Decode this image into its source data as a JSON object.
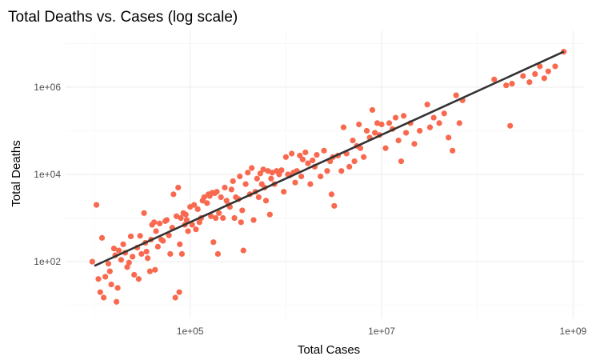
{
  "chart_data": {
    "type": "scatter",
    "title": "Total Deaths vs. Cases (log scale)",
    "xlabel": "Total Cases",
    "ylabel": "Total Deaths",
    "x_scale": "log10",
    "y_scale": "log10",
    "xlim": [
      5000,
      1300000000
    ],
    "ylim": [
      5,
      20000000
    ],
    "x_ticks": [
      {
        "value": 100000,
        "label": "1e+05"
      },
      {
        "value": 10000000,
        "label": "1e+07"
      },
      {
        "value": 1000000000,
        "label": "1e+09"
      }
    ],
    "y_ticks": [
      {
        "value": 100,
        "label": "1e+02"
      },
      {
        "value": 10000,
        "label": "1e+04"
      },
      {
        "value": 1000000,
        "label": "1e+06"
      }
    ],
    "grid": true,
    "legend": "none",
    "colors": {
      "points": "#f8694f",
      "trend_line": "#333333",
      "grid": "#ebebeb",
      "background": "#ffffff"
    },
    "trend_line": {
      "type": "linear-fit-log-log",
      "points": [
        {
          "x": 10000,
          "y": 80
        },
        {
          "x": 800000000,
          "y": 6500000
        }
      ]
    },
    "points": [
      {
        "x": 9500,
        "y": 100
      },
      {
        "x": 10500,
        "y": 2000
      },
      {
        "x": 11000,
        "y": 40
      },
      {
        "x": 11500,
        "y": 20
      },
      {
        "x": 12000,
        "y": 350
      },
      {
        "x": 12500,
        "y": 15
      },
      {
        "x": 13000,
        "y": 45
      },
      {
        "x": 14000,
        "y": 90
      },
      {
        "x": 14500,
        "y": 60
      },
      {
        "x": 15000,
        "y": 30
      },
      {
        "x": 16000,
        "y": 200
      },
      {
        "x": 16500,
        "y": 140
      },
      {
        "x": 17000,
        "y": 12
      },
      {
        "x": 17500,
        "y": 25
      },
      {
        "x": 18000,
        "y": 180
      },
      {
        "x": 19000,
        "y": 110
      },
      {
        "x": 20000,
        "y": 250
      },
      {
        "x": 21000,
        "y": 160
      },
      {
        "x": 22000,
        "y": 75
      },
      {
        "x": 23000,
        "y": 95
      },
      {
        "x": 24000,
        "y": 380
      },
      {
        "x": 25000,
        "y": 130
      },
      {
        "x": 26000,
        "y": 50
      },
      {
        "x": 28000,
        "y": 210
      },
      {
        "x": 29000,
        "y": 40
      },
      {
        "x": 30000,
        "y": 390
      },
      {
        "x": 31000,
        "y": 150
      },
      {
        "x": 33000,
        "y": 1300
      },
      {
        "x": 34000,
        "y": 270
      },
      {
        "x": 35000,
        "y": 170
      },
      {
        "x": 36000,
        "y": 120
      },
      {
        "x": 38000,
        "y": 60
      },
      {
        "x": 39000,
        "y": 320
      },
      {
        "x": 40000,
        "y": 700
      },
      {
        "x": 42000,
        "y": 800
      },
      {
        "x": 43000,
        "y": 65
      },
      {
        "x": 44000,
        "y": 500
      },
      {
        "x": 46000,
        "y": 220
      },
      {
        "x": 48000,
        "y": 750
      },
      {
        "x": 50000,
        "y": 320
      },
      {
        "x": 52000,
        "y": 300
      },
      {
        "x": 55000,
        "y": 850
      },
      {
        "x": 57000,
        "y": 900
      },
      {
        "x": 60000,
        "y": 400
      },
      {
        "x": 62000,
        "y": 150
      },
      {
        "x": 65000,
        "y": 600
      },
      {
        "x": 67000,
        "y": 3500
      },
      {
        "x": 70000,
        "y": 15
      },
      {
        "x": 72000,
        "y": 1100
      },
      {
        "x": 75000,
        "y": 5000
      },
      {
        "x": 77000,
        "y": 20
      },
      {
        "x": 78000,
        "y": 250
      },
      {
        "x": 80000,
        "y": 1000
      },
      {
        "x": 82000,
        "y": 150
      },
      {
        "x": 85000,
        "y": 1300
      },
      {
        "x": 88000,
        "y": 700
      },
      {
        "x": 90000,
        "y": 1200
      },
      {
        "x": 92000,
        "y": 900
      },
      {
        "x": 95000,
        "y": 500
      },
      {
        "x": 100000,
        "y": 1800
      },
      {
        "x": 105000,
        "y": 700
      },
      {
        "x": 110000,
        "y": 2000
      },
      {
        "x": 115000,
        "y": 550
      },
      {
        "x": 120000,
        "y": 1600
      },
      {
        "x": 125000,
        "y": 800
      },
      {
        "x": 130000,
        "y": 1000
      },
      {
        "x": 135000,
        "y": 2500
      },
      {
        "x": 140000,
        "y": 3000
      },
      {
        "x": 150000,
        "y": 2200
      },
      {
        "x": 155000,
        "y": 3500
      },
      {
        "x": 160000,
        "y": 3200
      },
      {
        "x": 165000,
        "y": 1100
      },
      {
        "x": 170000,
        "y": 3800
      },
      {
        "x": 175000,
        "y": 280
      },
      {
        "x": 180000,
        "y": 3700
      },
      {
        "x": 185000,
        "y": 1000
      },
      {
        "x": 190000,
        "y": 4000
      },
      {
        "x": 195000,
        "y": 150
      },
      {
        "x": 200000,
        "y": 1300
      },
      {
        "x": 210000,
        "y": 3000
      },
      {
        "x": 220000,
        "y": 1000
      },
      {
        "x": 230000,
        "y": 5000
      },
      {
        "x": 240000,
        "y": 2500
      },
      {
        "x": 250000,
        "y": 2000
      },
      {
        "x": 260000,
        "y": 1800
      },
      {
        "x": 270000,
        "y": 4500
      },
      {
        "x": 280000,
        "y": 7000
      },
      {
        "x": 290000,
        "y": 1000
      },
      {
        "x": 300000,
        "y": 3000
      },
      {
        "x": 320000,
        "y": 2700
      },
      {
        "x": 330000,
        "y": 9000
      },
      {
        "x": 340000,
        "y": 800
      },
      {
        "x": 350000,
        "y": 1500
      },
      {
        "x": 360000,
        "y": 180
      },
      {
        "x": 380000,
        "y": 6000
      },
      {
        "x": 400000,
        "y": 11000
      },
      {
        "x": 420000,
        "y": 3500
      },
      {
        "x": 440000,
        "y": 14000
      },
      {
        "x": 460000,
        "y": 900
      },
      {
        "x": 480000,
        "y": 4000
      },
      {
        "x": 500000,
        "y": 8000
      },
      {
        "x": 520000,
        "y": 3000
      },
      {
        "x": 540000,
        "y": 10500
      },
      {
        "x": 560000,
        "y": 6000
      },
      {
        "x": 580000,
        "y": 13000
      },
      {
        "x": 600000,
        "y": 5000
      },
      {
        "x": 620000,
        "y": 2500
      },
      {
        "x": 650000,
        "y": 12000
      },
      {
        "x": 680000,
        "y": 1200
      },
      {
        "x": 700000,
        "y": 8000
      },
      {
        "x": 720000,
        "y": 11000
      },
      {
        "x": 760000,
        "y": 6000
      },
      {
        "x": 800000,
        "y": 12000
      },
      {
        "x": 850000,
        "y": 10000
      },
      {
        "x": 900000,
        "y": 12500
      },
      {
        "x": 950000,
        "y": 4000
      },
      {
        "x": 1000000,
        "y": 25000
      },
      {
        "x": 1050000,
        "y": 10000
      },
      {
        "x": 1100000,
        "y": 9500
      },
      {
        "x": 1150000,
        "y": 30000
      },
      {
        "x": 1200000,
        "y": 11000
      },
      {
        "x": 1250000,
        "y": 6500
      },
      {
        "x": 1300000,
        "y": 12000
      },
      {
        "x": 1400000,
        "y": 27000
      },
      {
        "x": 1450000,
        "y": 9000
      },
      {
        "x": 1500000,
        "y": 22000
      },
      {
        "x": 1600000,
        "y": 32000
      },
      {
        "x": 1700000,
        "y": 18000
      },
      {
        "x": 1800000,
        "y": 6000
      },
      {
        "x": 1900000,
        "y": 21000
      },
      {
        "x": 2000000,
        "y": 15000
      },
      {
        "x": 2100000,
        "y": 28000
      },
      {
        "x": 2300000,
        "y": 9000
      },
      {
        "x": 2500000,
        "y": 35000
      },
      {
        "x": 2700000,
        "y": 12000
      },
      {
        "x": 2900000,
        "y": 20000
      },
      {
        "x": 3000000,
        "y": 3500
      },
      {
        "x": 3100000,
        "y": 25000
      },
      {
        "x": 3200000,
        "y": 1900
      },
      {
        "x": 3500000,
        "y": 27000
      },
      {
        "x": 3800000,
        "y": 12000
      },
      {
        "x": 4000000,
        "y": 120000
      },
      {
        "x": 4300000,
        "y": 30000
      },
      {
        "x": 4600000,
        "y": 15000
      },
      {
        "x": 5000000,
        "y": 60000
      },
      {
        "x": 5200000,
        "y": 20000
      },
      {
        "x": 5500000,
        "y": 45000
      },
      {
        "x": 5800000,
        "y": 140000
      },
      {
        "x": 6000000,
        "y": 40000
      },
      {
        "x": 6500000,
        "y": 25000
      },
      {
        "x": 7000000,
        "y": 100000
      },
      {
        "x": 7500000,
        "y": 70000
      },
      {
        "x": 8000000,
        "y": 300000
      },
      {
        "x": 8500000,
        "y": 90000
      },
      {
        "x": 9000000,
        "y": 150000
      },
      {
        "x": 9500000,
        "y": 80000
      },
      {
        "x": 10000000,
        "y": 140000
      },
      {
        "x": 11000000,
        "y": 40000
      },
      {
        "x": 12000000,
        "y": 150000
      },
      {
        "x": 13000000,
        "y": 110000
      },
      {
        "x": 14000000,
        "y": 200000
      },
      {
        "x": 15000000,
        "y": 60000
      },
      {
        "x": 16000000,
        "y": 20000
      },
      {
        "x": 17000000,
        "y": 220000
      },
      {
        "x": 18000000,
        "y": 90000
      },
      {
        "x": 20000000,
        "y": 150000
      },
      {
        "x": 22000000,
        "y": 50000
      },
      {
        "x": 25000000,
        "y": 100000
      },
      {
        "x": 30000000,
        "y": 400000
      },
      {
        "x": 32000000,
        "y": 120000
      },
      {
        "x": 35000000,
        "y": 200000
      },
      {
        "x": 40000000,
        "y": 150000
      },
      {
        "x": 45000000,
        "y": 250000
      },
      {
        "x": 50000000,
        "y": 70000
      },
      {
        "x": 55000000,
        "y": 35000
      },
      {
        "x": 60000000,
        "y": 650000
      },
      {
        "x": 65000000,
        "y": 150000
      },
      {
        "x": 70000000,
        "y": 500000
      },
      {
        "x": 150000000,
        "y": 1500000
      },
      {
        "x": 200000000,
        "y": 1100000
      },
      {
        "x": 220000000,
        "y": 130000
      },
      {
        "x": 230000000,
        "y": 1200000
      },
      {
        "x": 300000000,
        "y": 1800000
      },
      {
        "x": 350000000,
        "y": 1300000
      },
      {
        "x": 400000000,
        "y": 2000000
      },
      {
        "x": 450000000,
        "y": 3000000
      },
      {
        "x": 500000000,
        "y": 1600000
      },
      {
        "x": 550000000,
        "y": 2300000
      },
      {
        "x": 650000000,
        "y": 3000000
      },
      {
        "x": 800000000,
        "y": 6500000
      }
    ]
  }
}
